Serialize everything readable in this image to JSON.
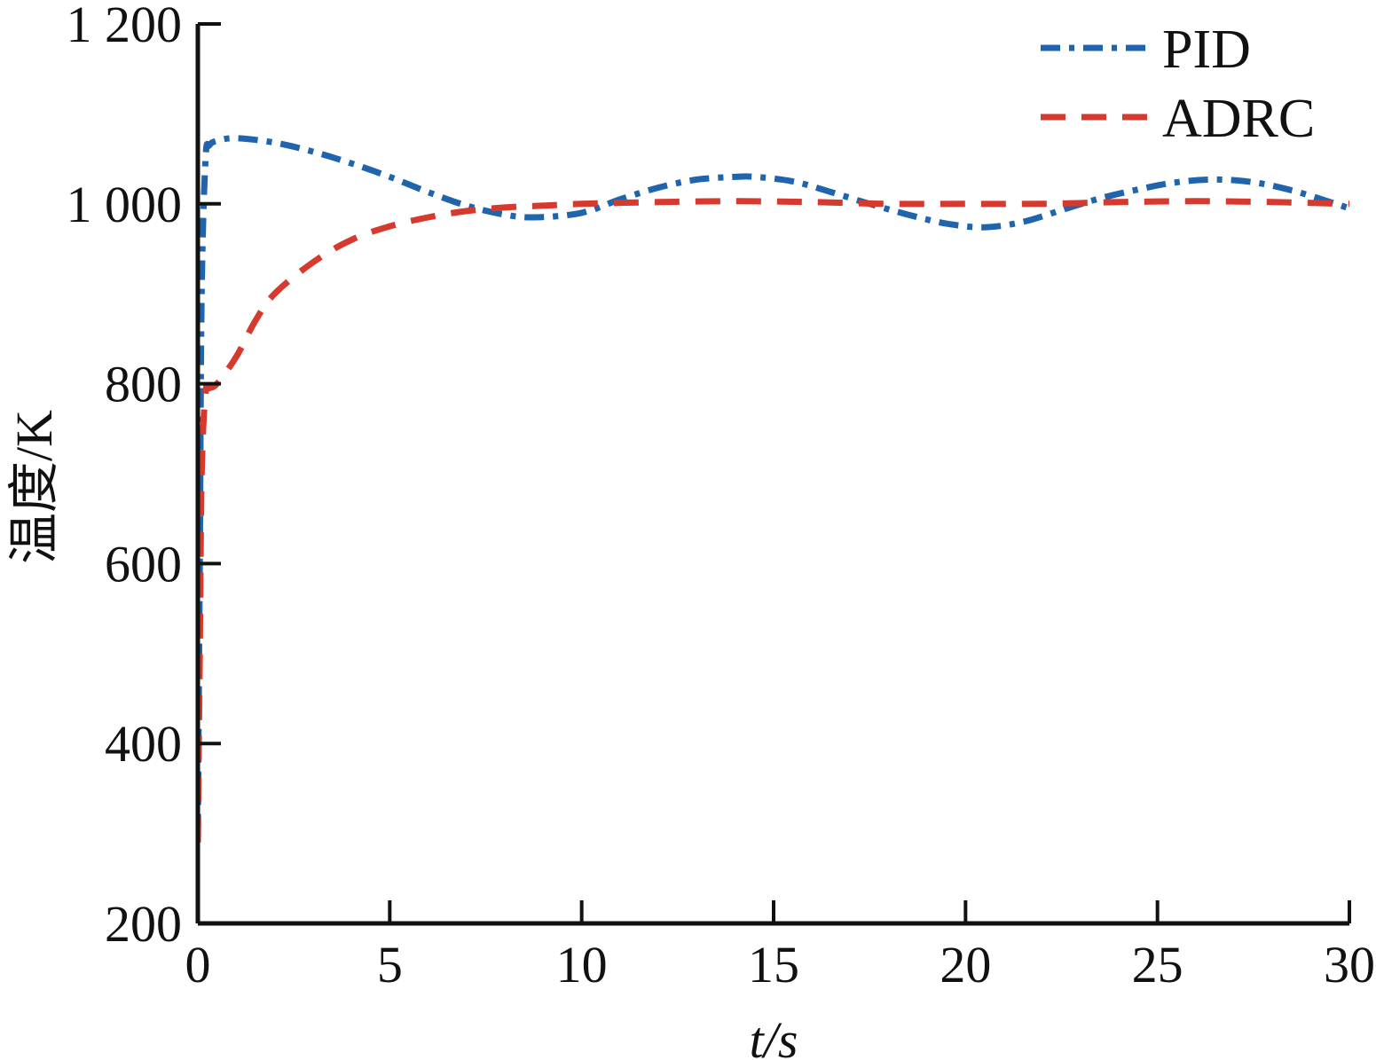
{
  "chart_data": {
    "type": "line",
    "xlabel": "t/s",
    "ylabel": "温度/K",
    "xlim": [
      0,
      30
    ],
    "ylim": [
      200,
      1200
    ],
    "xticks": [
      0,
      5,
      10,
      15,
      20,
      25,
      30
    ],
    "xtick_labels": [
      "0",
      "5",
      "10",
      "15",
      "20",
      "25",
      "30"
    ],
    "yticks": [
      200,
      400,
      600,
      800,
      1000,
      1200
    ],
    "ytick_labels": [
      "200",
      "400",
      "600",
      "800",
      "1 000",
      "1 200"
    ],
    "grid": false,
    "legend_position": "top-right",
    "series": [
      {
        "name": "PID",
        "color": "#1f64ad",
        "style": "dash-dot",
        "x": [
          0,
          0.05,
          0.1,
          0.2,
          0.3,
          0.5,
          1,
          2,
          3,
          4,
          5,
          6,
          7,
          8,
          8.8,
          10,
          11,
          12,
          13,
          14,
          14.5,
          15.5,
          16.5,
          17.5,
          18.5,
          19.5,
          20.5,
          21.5,
          22.5,
          23.5,
          24.5,
          25.5,
          26.5,
          27.5,
          28.5,
          29.5,
          30
        ],
        "y": [
          300,
          600,
          900,
          1050,
          1065,
          1070,
          1073,
          1068,
          1058,
          1045,
          1030,
          1013,
          998,
          988,
          985,
          990,
          1005,
          1018,
          1027,
          1030,
          1030,
          1025,
          1013,
          1000,
          988,
          978,
          974,
          980,
          993,
          1006,
          1016,
          1024,
          1027,
          1024,
          1015,
          1002,
          995
        ]
      },
      {
        "name": "ADRC",
        "color": "#d63a2f",
        "style": "dashed",
        "x": [
          0,
          0.05,
          0.1,
          0.2,
          0.3,
          0.5,
          1,
          1.5,
          2,
          3,
          4,
          5,
          6,
          7,
          8,
          9,
          10,
          12,
          14,
          16,
          18,
          20,
          22,
          24,
          26,
          28,
          30
        ],
        "y": [
          290,
          500,
          700,
          790,
          795,
          800,
          830,
          870,
          900,
          935,
          960,
          975,
          985,
          992,
          996,
          998,
          1000,
          1002,
          1003,
          1002,
          1000,
          1000,
          1000,
          1002,
          1003,
          1002,
          1000
        ]
      }
    ]
  }
}
